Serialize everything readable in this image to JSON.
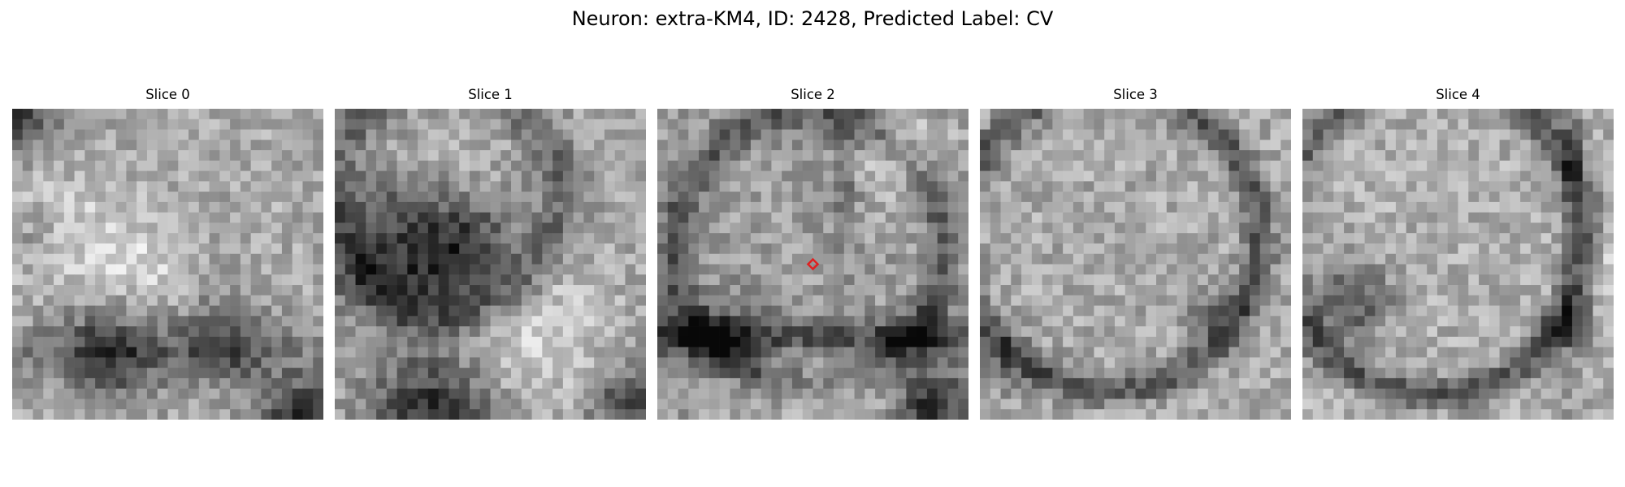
{
  "figure": {
    "title": "Neuron: extra-KM4, ID: 2428, Predicted Label: CV"
  },
  "slices": [
    {
      "title": "Slice 0"
    },
    {
      "title": "Slice 1"
    },
    {
      "title": "Slice 2"
    },
    {
      "title": "Slice 3"
    },
    {
      "title": "Slice 4"
    }
  ],
  "marker": {
    "slice_index": 2,
    "shape": "diamond",
    "color": "#e02020"
  },
  "colors": {
    "colormap": "gray"
  }
}
